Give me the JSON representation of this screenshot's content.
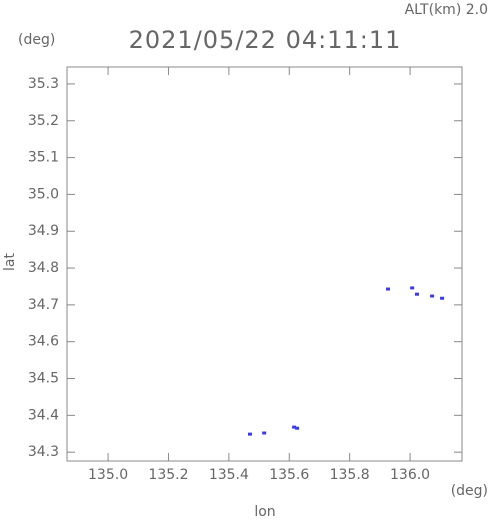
{
  "chart_data": {
    "type": "scatter",
    "title": "2021/05/22 04:11:11",
    "subtitle": "ALT(km) 2.0",
    "y_unit": "(deg)",
    "x_unit": "(deg)",
    "xlabel": "lon",
    "ylabel": "lat",
    "color": "#3a3ae8",
    "x": [
      135.927,
      136.007,
      136.023,
      136.073,
      136.106,
      135.47,
      135.517,
      135.616,
      135.626
    ],
    "values": [
      34.743,
      34.746,
      34.729,
      34.724,
      34.718,
      34.349,
      34.352,
      34.368,
      34.365
    ],
    "xlim": [
      134.864,
      136.172
    ],
    "ylim": [
      34.276,
      35.346
    ],
    "xticks": [
      {
        "value": 135,
        "label": "135.0"
      },
      135.2,
      135.4,
      135.6,
      135.8,
      {
        "value": 136,
        "label": "136.0"
      }
    ],
    "yticks": [
      34.3,
      34.4,
      34.5,
      34.6,
      34.7,
      34.8,
      34.9,
      {
        "value": 35,
        "label": "35.0"
      },
      35.1,
      35.2,
      35.3
    ]
  }
}
